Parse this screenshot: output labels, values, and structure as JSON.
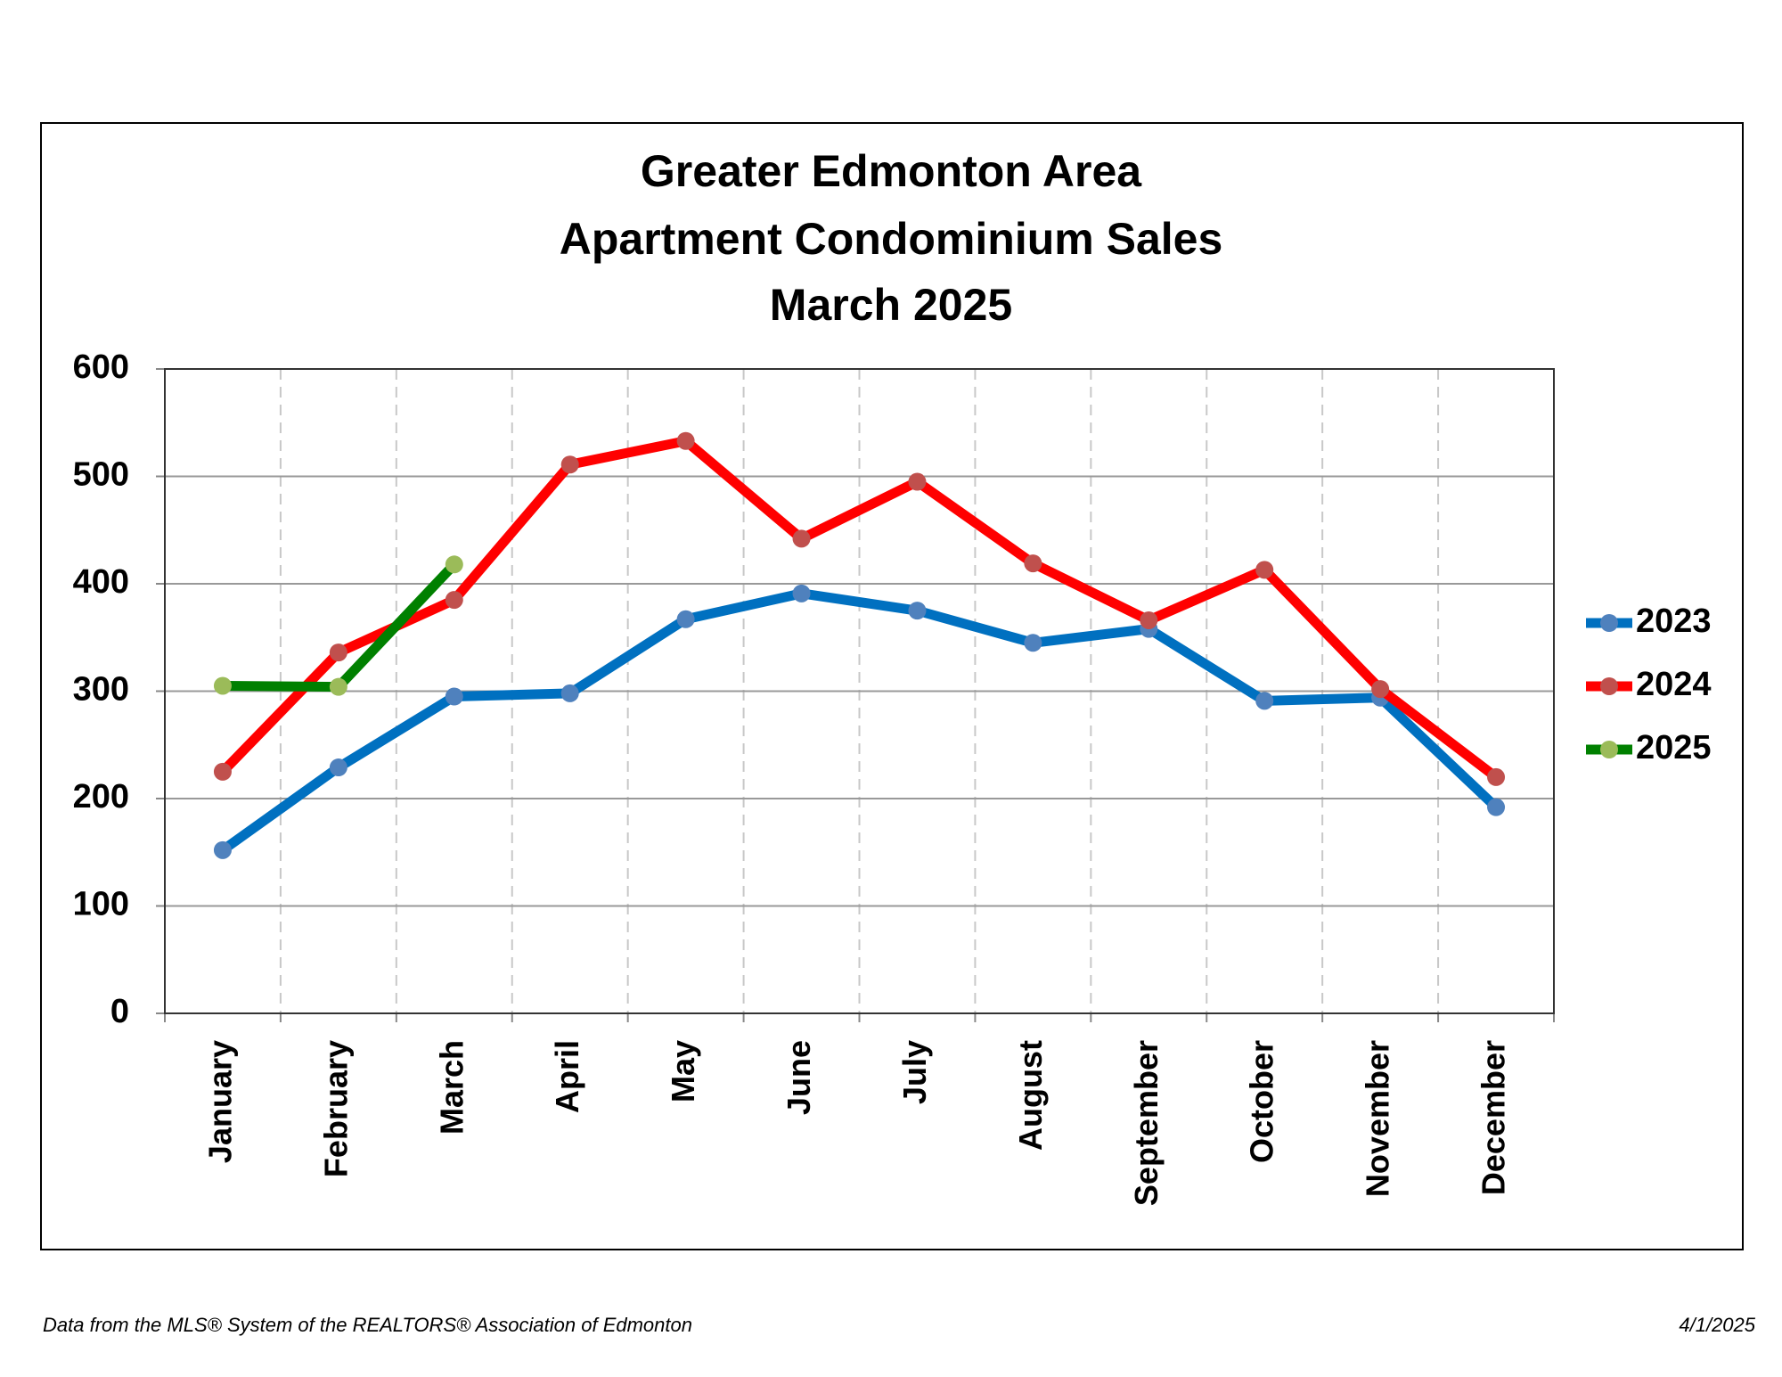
{
  "chart_data": {
    "type": "line",
    "title": [
      "Greater Edmonton Area",
      "Apartment Condominium Sales",
      "March 2025"
    ],
    "categories": [
      "January",
      "February",
      "March",
      "April",
      "May",
      "June",
      "July",
      "August",
      "September",
      "October",
      "November",
      "December"
    ],
    "series": [
      {
        "name": "2023",
        "color": "#0070c0",
        "marker_color": "#4f81bd",
        "values": [
          152,
          229,
          295,
          298,
          367,
          391,
          375,
          345,
          358,
          291,
          294,
          192
        ]
      },
      {
        "name": "2024",
        "color": "#ff0000",
        "marker_color": "#c0504d",
        "values": [
          225,
          336,
          385,
          511,
          533,
          442,
          495,
          419,
          366,
          413,
          302,
          220
        ]
      },
      {
        "name": "2025",
        "color": "#008000",
        "marker_color": "#9bbb59",
        "values": [
          305,
          304,
          418,
          null,
          null,
          null,
          null,
          null,
          null,
          null,
          null,
          null
        ]
      }
    ],
    "ylim": [
      0,
      600
    ],
    "yticks": [
      0,
      100,
      200,
      300,
      400,
      500,
      600
    ],
    "grid": true,
    "legend": "right",
    "source": "Data from the MLS® System of the REALTORS® Association of Edmonton",
    "date": "4/1/2025"
  }
}
